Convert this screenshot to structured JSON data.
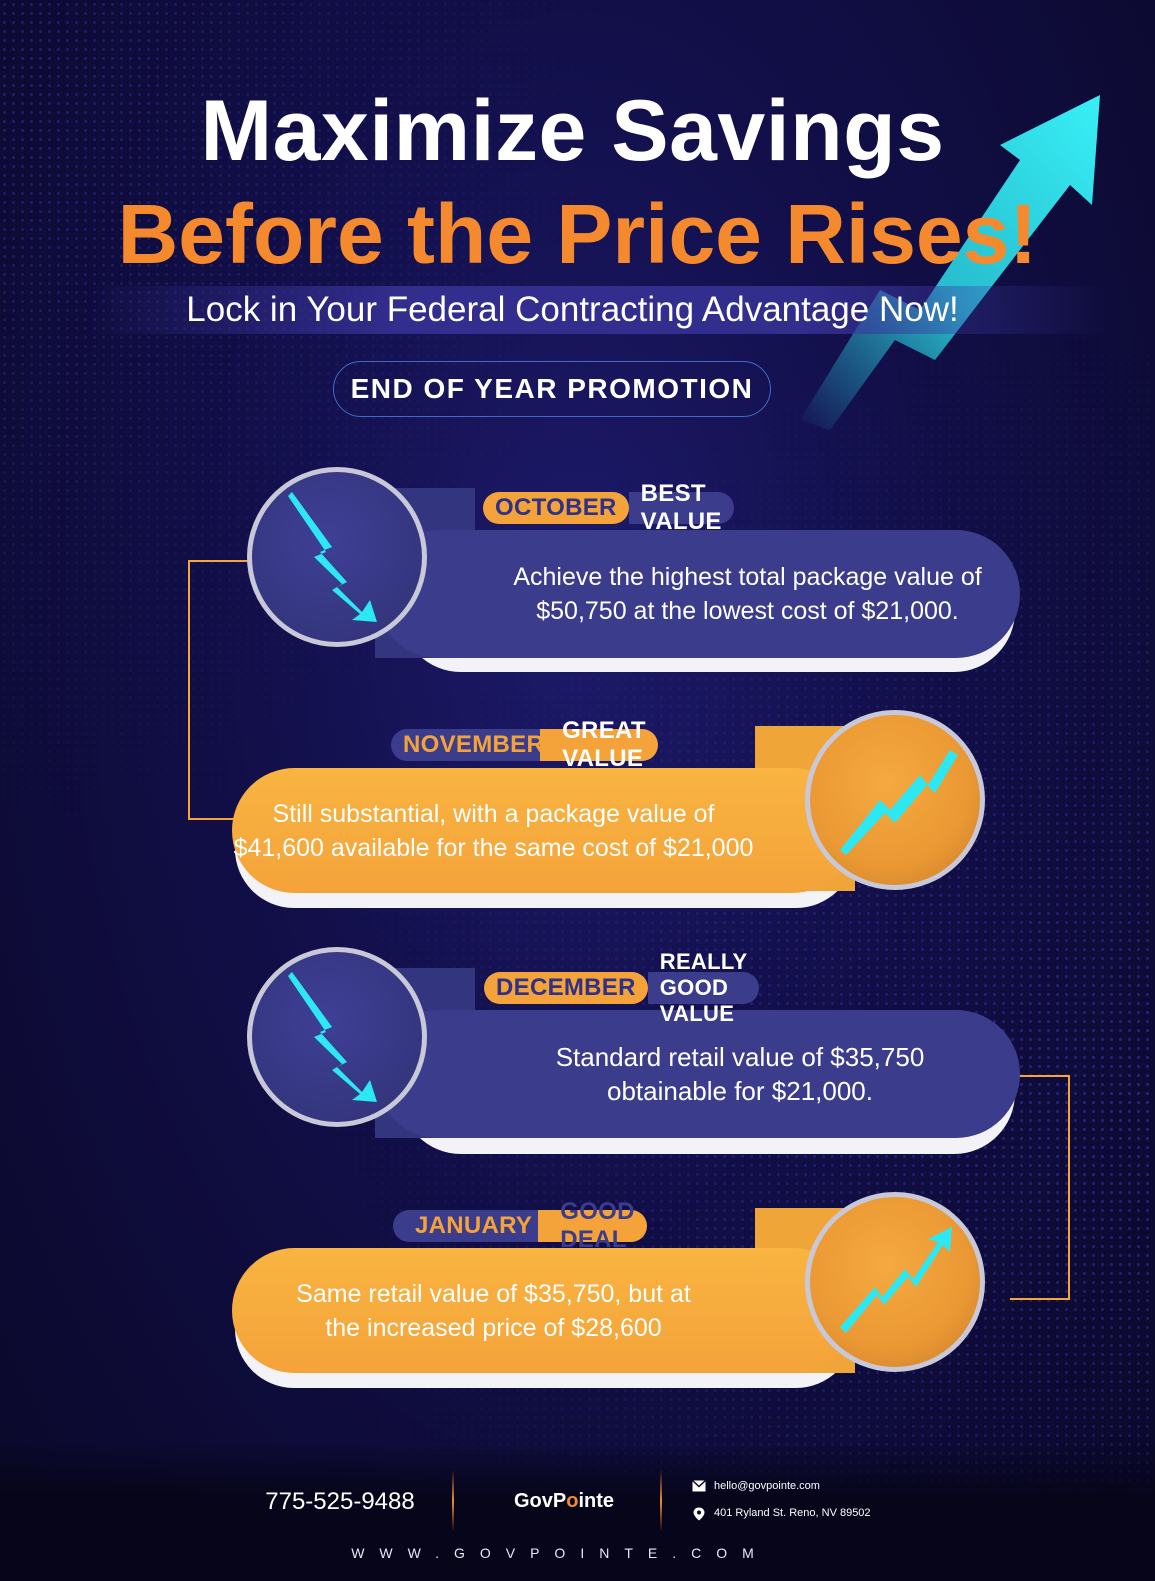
{
  "header": {
    "title_line1": "Maximize Savings",
    "title_line2": "Before the Price Rises!",
    "subtitle": "Lock in Your Federal Contracting Advantage Now!",
    "promo_badge": "END OF YEAR PROMOTION"
  },
  "timeline": [
    {
      "month": "OCTOBER",
      "tag": "BEST VALUE",
      "text_line1": "Achieve the highest total package value of",
      "text_line2": "$50,750 at the lowest cost of $21,000.",
      "theme": "blue",
      "trend_icon": "trend-down-icon"
    },
    {
      "month": "NOVEMBER",
      "tag": "GREAT VALUE",
      "text_line1": "Still substantial, with a package value of",
      "text_line2": "$41,600 available for the same cost of $21,000",
      "theme": "orange",
      "trend_icon": "trend-up-icon"
    },
    {
      "month": "DECEMBER",
      "tag": "REALLY GOOD VALUE",
      "text_line1": "Standard retail value of $35,750",
      "text_line2": "obtainable for $21,000.",
      "theme": "blue",
      "trend_icon": "trend-down-icon"
    },
    {
      "month": "JANUARY",
      "tag": "GOOD DEAL",
      "text_line1": "Same retail value of $35,750, but at",
      "text_line2": "the increased price of $28,600",
      "theme": "orange",
      "trend_icon": "trend-up-icon"
    }
  ],
  "footer": {
    "phone": "775-525-9488",
    "logo_part1": "GovP",
    "logo_dot": "o",
    "logo_part2": "inte",
    "email": "hello@govpointe.com",
    "address": "401 Ryland St. Reno, NV 89502",
    "website": "WWW.GOVPOINTE.COM"
  },
  "colors": {
    "background": "#120f4a",
    "accent_orange": "#f5892e",
    "card_blue": "#3b3d8c",
    "card_orange": "#f4a33a",
    "arrow_cyan": "#2de8f2"
  }
}
